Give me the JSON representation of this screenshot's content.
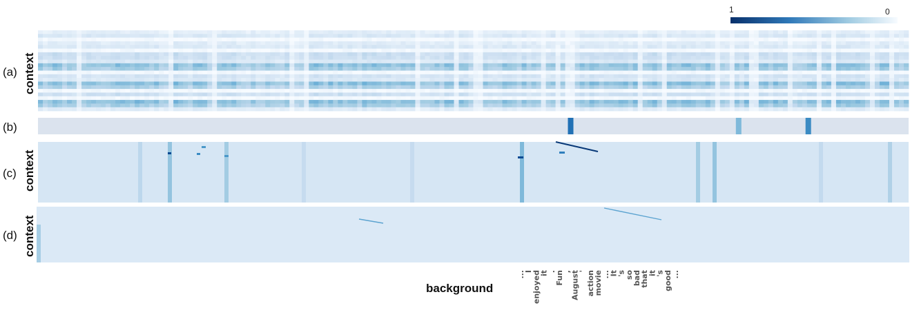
{
  "colors": {
    "low": "#f7fbff",
    "high": "#08306b",
    "panel_b_base": "#dbe3ee",
    "panel_c_base": "#d6e6f4",
    "panel_d_base": "#dbe9f6"
  },
  "chart_data": {
    "type": "heatmap",
    "xlabel": "background",
    "ylabel": "context",
    "colorbar": {
      "max_label": "1",
      "min_label": "0",
      "placement": "top-right"
    },
    "panels": [
      {
        "label": "(a)",
        "ylabel": "context"
      },
      {
        "label": "(b)",
        "ylabel": ""
      },
      {
        "label": "(c)",
        "ylabel": "context"
      },
      {
        "label": "(d)",
        "ylabel": "context"
      }
    ],
    "x_tokens": [
      "...",
      "I",
      "enjoyed",
      "it",
      ".",
      "Fun",
      ",",
      "August",
      "'",
      "action",
      "movie",
      "...",
      "It",
      "'s",
      "so",
      "bad",
      "that",
      "it",
      "'s",
      "good",
      "..."
    ],
    "panel_b_weights": [
      {
        "x_fraction": 0.611,
        "value": 0.75
      },
      {
        "x_fraction": 0.804,
        "value": 0.45
      },
      {
        "x_fraction": 0.884,
        "value": 0.65
      }
    ]
  }
}
